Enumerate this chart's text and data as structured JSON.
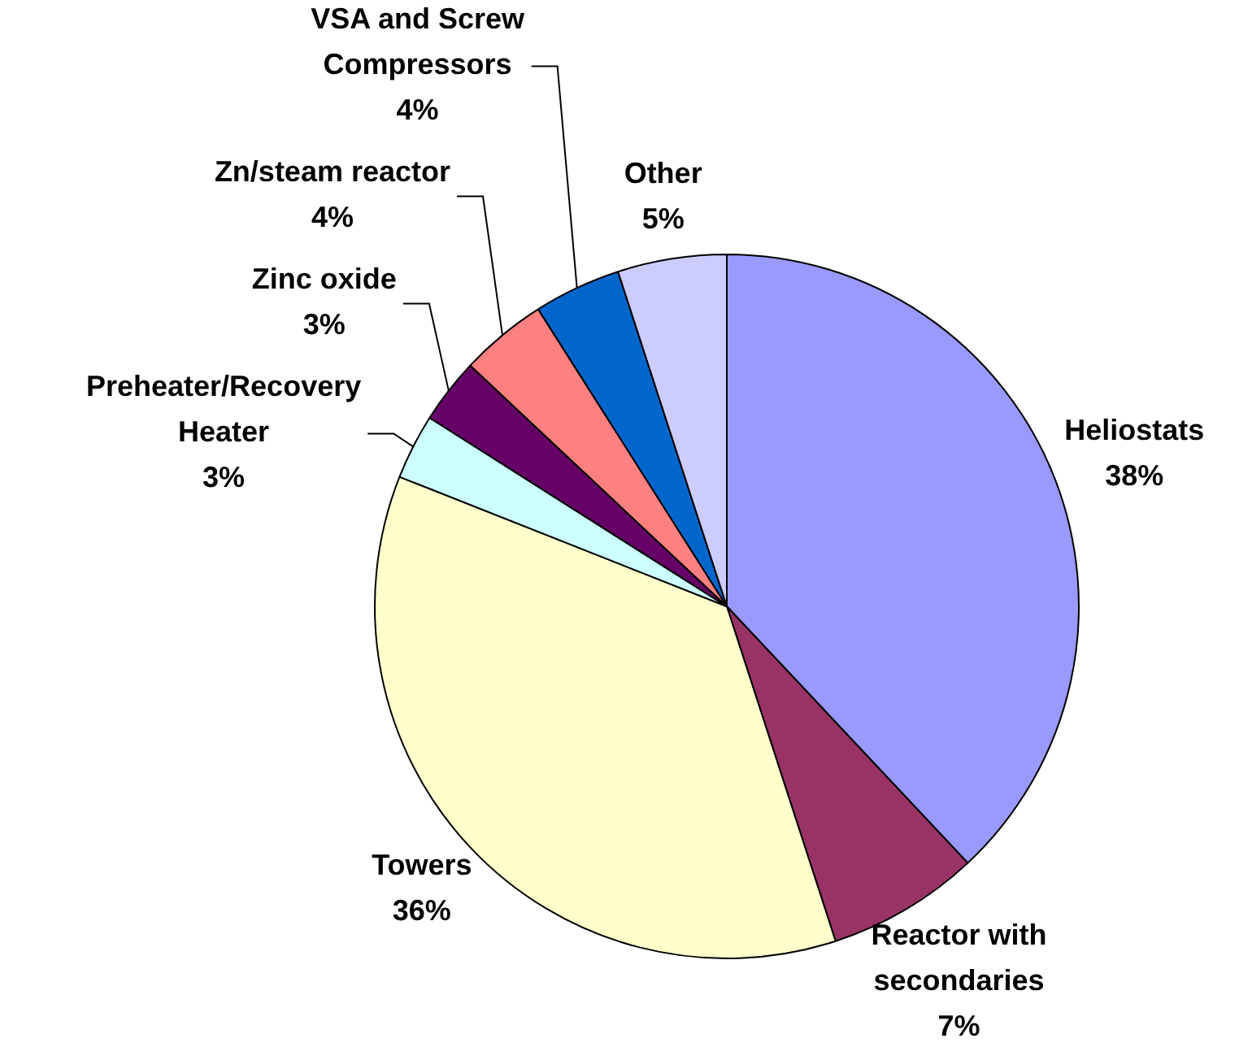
{
  "chart_data": {
    "type": "pie",
    "categories": [
      "Heliostats",
      "Reactor with secondaries",
      "Towers",
      "Preheater/Recovery Heater",
      "Zinc oxide",
      "Zn/steam reactor",
      "VSA and Screw Compressors",
      "Other"
    ],
    "values": [
      38,
      7,
      36,
      3,
      3,
      4,
      4,
      5
    ],
    "value_labels": [
      "38%",
      "7%",
      "36%",
      "3%",
      "3%",
      "4%",
      "4%",
      "5%"
    ],
    "colors": [
      "#9999ff",
      "#993366",
      "#ffffcc",
      "#ccffff",
      "#660066",
      "#ff8080",
      "#0066cc",
      "#ccccff"
    ],
    "legend": false
  }
}
